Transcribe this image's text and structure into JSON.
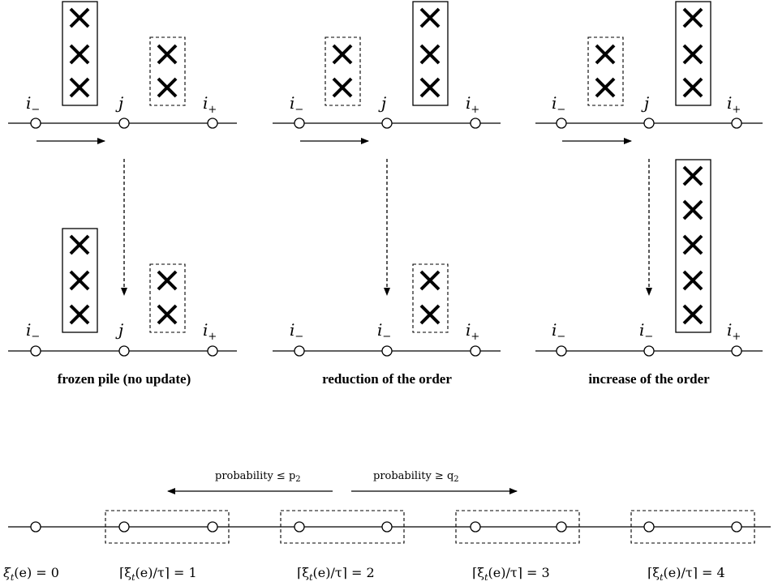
{
  "panels": [
    {
      "caption": "frozen pile (no update)",
      "top_labels": [
        "i",
        "j",
        "i"
      ],
      "bottom_labels": [
        "i",
        "j",
        "i"
      ],
      "top_left_pile": 3,
      "top_right_pile": 2,
      "bottom_left_pile": 3,
      "bottom_right_pile": 2
    },
    {
      "caption": "reduction of the order",
      "top_labels": [
        "i",
        "j",
        "i"
      ],
      "bottom_labels": [
        "i",
        "i",
        "i"
      ],
      "top_left_pile": 2,
      "top_right_pile": 3,
      "bottom_left_pile": 0,
      "bottom_right_pile": 2
    },
    {
      "caption": "increase of the order",
      "top_labels": [
        "i",
        "j",
        "i"
      ],
      "bottom_labels": [
        "i",
        "i",
        "i"
      ],
      "top_left_pile": 2,
      "top_right_pile": 3,
      "bottom_left_pile": 0,
      "bottom_right_pile": 5
    }
  ],
  "subscripts": {
    "minus": "−",
    "plus": "+"
  },
  "bottom": {
    "prob_left": "probability ≤ p",
    "prob_left_sub": "2",
    "prob_right": "probability ≥ q",
    "prob_right_sub": "2",
    "labels": [
      "ξ",
      "⌈ξ",
      "⌈ξ",
      "⌈ξ",
      "⌈ξ"
    ],
    "label_tails": [
      "(e) = 0",
      "(e)/τ⌉ = 1",
      "(e)/τ⌉ = 2",
      "(e)/τ⌉ = 3",
      "(e)/τ⌉ = 4"
    ],
    "label_sub": "t"
  }
}
